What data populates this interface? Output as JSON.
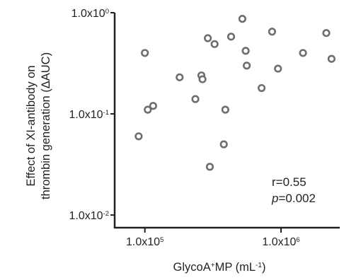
{
  "chart_data": {
    "type": "scatter",
    "xlabel": {
      "base": "GlycoA",
      "sup": "+",
      "rest": "MP (mL",
      "unit_sup": "-1",
      "close": ")"
    },
    "ylabel_lines": [
      "Effect of XI-antibody on",
      "thrombin generation (ΔAUC)"
    ],
    "x_scale": "log",
    "y_scale": "log",
    "xlim": [
      60000,
      2700000
    ],
    "ylim": [
      0.0075,
      1.0
    ],
    "x_ticks": [
      {
        "value": 100000,
        "base": "1.0x10",
        "exp": "5"
      },
      {
        "value": 1000000,
        "base": "1.0x10",
        "exp": "6"
      }
    ],
    "y_ticks": [
      {
        "value": 1.0,
        "base": "1.0x10",
        "exp": "0"
      },
      {
        "value": 0.1,
        "base": "1.0x10",
        "exp": "-1"
      },
      {
        "value": 0.01,
        "base": "1.0x10",
        "exp": "-2"
      }
    ],
    "annotation": {
      "r_text": "r=0.55",
      "p_label": "p",
      "p_value": "=0.002"
    },
    "grid": false,
    "marker_color": "#6d6e71",
    "axis_color": "#231f20",
    "points": [
      {
        "x": 90000,
        "y": 0.06
      },
      {
        "x": 100000,
        "y": 0.4
      },
      {
        "x": 105000,
        "y": 0.11
      },
      {
        "x": 115000,
        "y": 0.12
      },
      {
        "x": 180000,
        "y": 0.23
      },
      {
        "x": 235000,
        "y": 0.14
      },
      {
        "x": 260000,
        "y": 0.24
      },
      {
        "x": 265000,
        "y": 0.22
      },
      {
        "x": 290000,
        "y": 0.56
      },
      {
        "x": 300000,
        "y": 0.03
      },
      {
        "x": 325000,
        "y": 0.49
      },
      {
        "x": 380000,
        "y": 0.05
      },
      {
        "x": 390000,
        "y": 0.11
      },
      {
        "x": 430000,
        "y": 0.58
      },
      {
        "x": 520000,
        "y": 0.87
      },
      {
        "x": 550000,
        "y": 0.42
      },
      {
        "x": 560000,
        "y": 0.3
      },
      {
        "x": 720000,
        "y": 0.18
      },
      {
        "x": 860000,
        "y": 0.65
      },
      {
        "x": 950000,
        "y": 0.28
      },
      {
        "x": 1450000,
        "y": 0.4
      },
      {
        "x": 2150000,
        "y": 0.63
      },
      {
        "x": 2350000,
        "y": 0.35
      }
    ]
  }
}
